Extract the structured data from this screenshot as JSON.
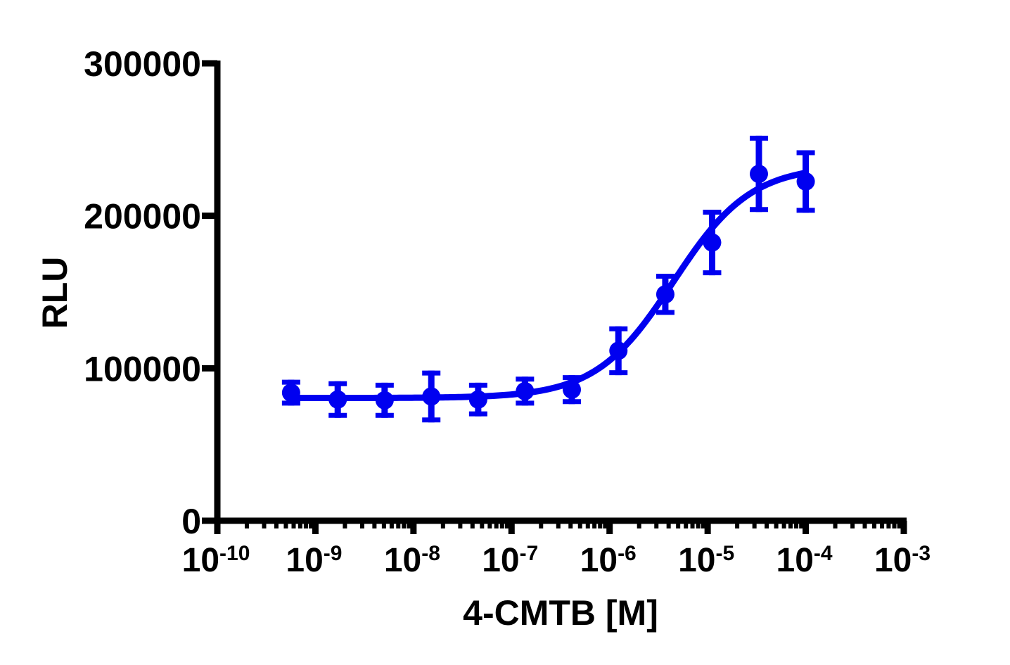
{
  "chart_data": {
    "type": "scatter",
    "subtype": "dose-response with error bars and 4PL fitted curve",
    "title": "",
    "xlabel": "4-CMTB [M]",
    "ylabel": "RLU",
    "xscale": "log10",
    "xlim": [
      1e-10,
      0.001
    ],
    "ylim": [
      0,
      300000
    ],
    "grid": false,
    "legend": null,
    "color": "#0000F0",
    "x_ticks": [
      {
        "value": 1e-10,
        "base": "10",
        "exp": "-10"
      },
      {
        "value": 1e-09,
        "base": "10",
        "exp": "-9"
      },
      {
        "value": 1e-08,
        "base": "10",
        "exp": "-8"
      },
      {
        "value": 1e-07,
        "base": "10",
        "exp": "-7"
      },
      {
        "value": 1e-06,
        "base": "10",
        "exp": "-6"
      },
      {
        "value": 1e-05,
        "base": "10",
        "exp": "-5"
      },
      {
        "value": 0.0001,
        "base": "10",
        "exp": "-4"
      },
      {
        "value": 0.001,
        "base": "10",
        "exp": "-3"
      }
    ],
    "y_ticks": [
      {
        "value": 0,
        "label": "0"
      },
      {
        "value": 100000,
        "label": "100000"
      },
      {
        "value": 200000,
        "label": "200000"
      },
      {
        "value": 300000,
        "label": "300000"
      }
    ],
    "series": [
      {
        "name": "4-CMTB",
        "x": [
          5.65e-10,
          1.69e-09,
          5.08e-09,
          1.52e-08,
          4.57e-08,
          1.37e-07,
          4.12e-07,
          1.23e-06,
          3.7e-06,
          1.11e-05,
          3.33e-05,
          0.0001
        ],
        "y": [
          84000,
          79500,
          79000,
          81500,
          79500,
          85000,
          86000,
          111500,
          148500,
          182500,
          227500,
          222500
        ],
        "error": [
          8500,
          12000,
          11500,
          17000,
          11000,
          9500,
          9500,
          16000,
          13500,
          21500,
          25000,
          20500
        ]
      }
    ],
    "fit": {
      "model": "4PL sigmoidal",
      "bottom": 80500,
      "top": 233000,
      "logEC50": -5.35,
      "hill_slope": 1.1,
      "x_range": [
        5.65e-10,
        0.0001
      ]
    }
  }
}
